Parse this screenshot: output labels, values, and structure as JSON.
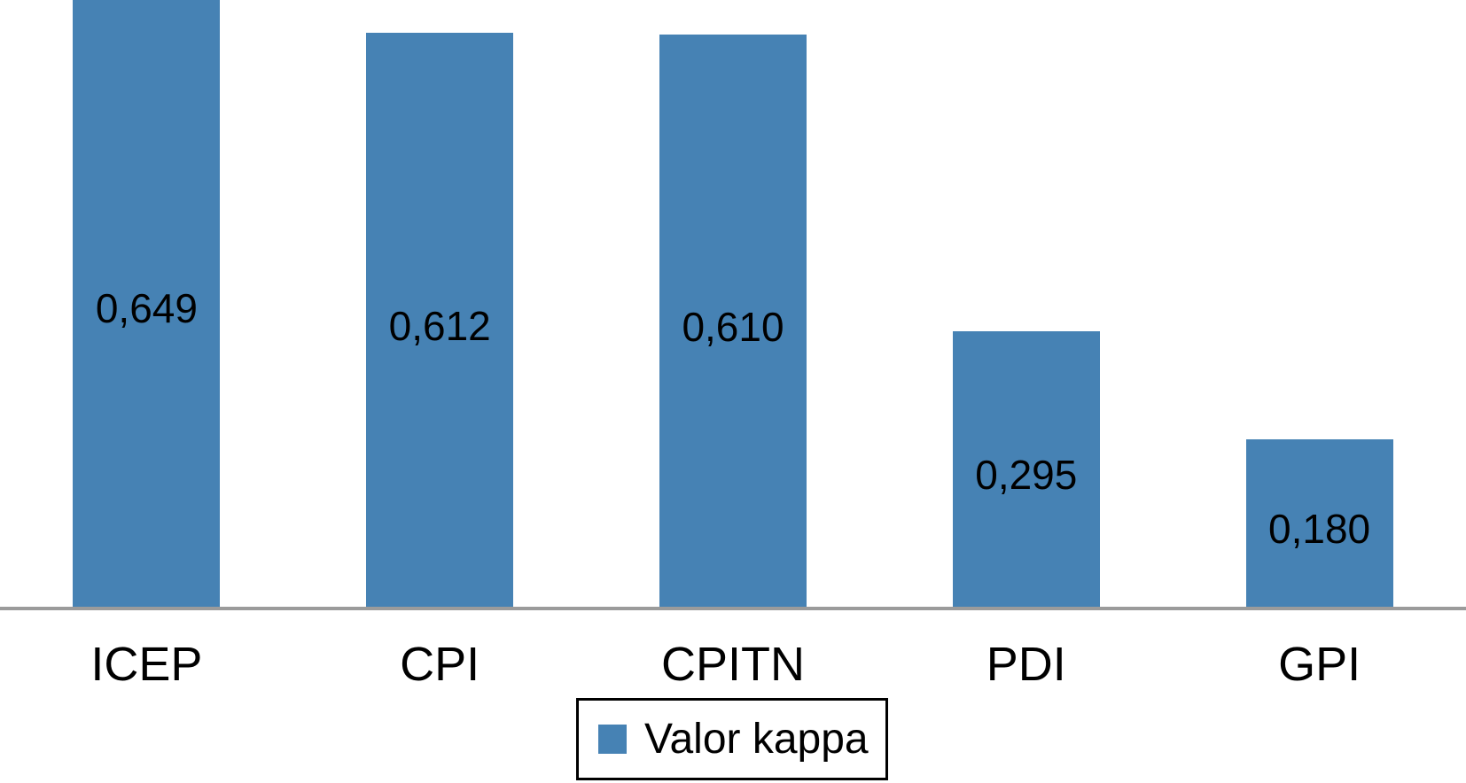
{
  "chart_data": {
    "type": "bar",
    "title": "",
    "xlabel": "",
    "ylabel": "",
    "categories": [
      "ICEP",
      "CPI",
      "CPITN",
      "PDI",
      "GPI"
    ],
    "series": [
      {
        "name": "Valor kappa",
        "values": [
          0.649,
          0.612,
          0.61,
          0.295,
          0.18
        ],
        "data_labels": [
          "0,649",
          "0,612",
          "0,610",
          "0,295",
          "0,180"
        ]
      }
    ],
    "ylim": [
      0,
      0.647
    ],
    "grid": false,
    "axis_ticks_visible": false,
    "data_label_position": "center",
    "legend_position": "bottom-center",
    "top_clipped_bar": "ICEP",
    "colors": {
      "bar": "#4682B4",
      "axis_line": "#9b9b9b",
      "data_label_text": "#000000",
      "category_label_text": "#000000",
      "legend_border": "#000000",
      "background": "#ffffff"
    }
  },
  "legend": {
    "label": "Valor kappa"
  }
}
